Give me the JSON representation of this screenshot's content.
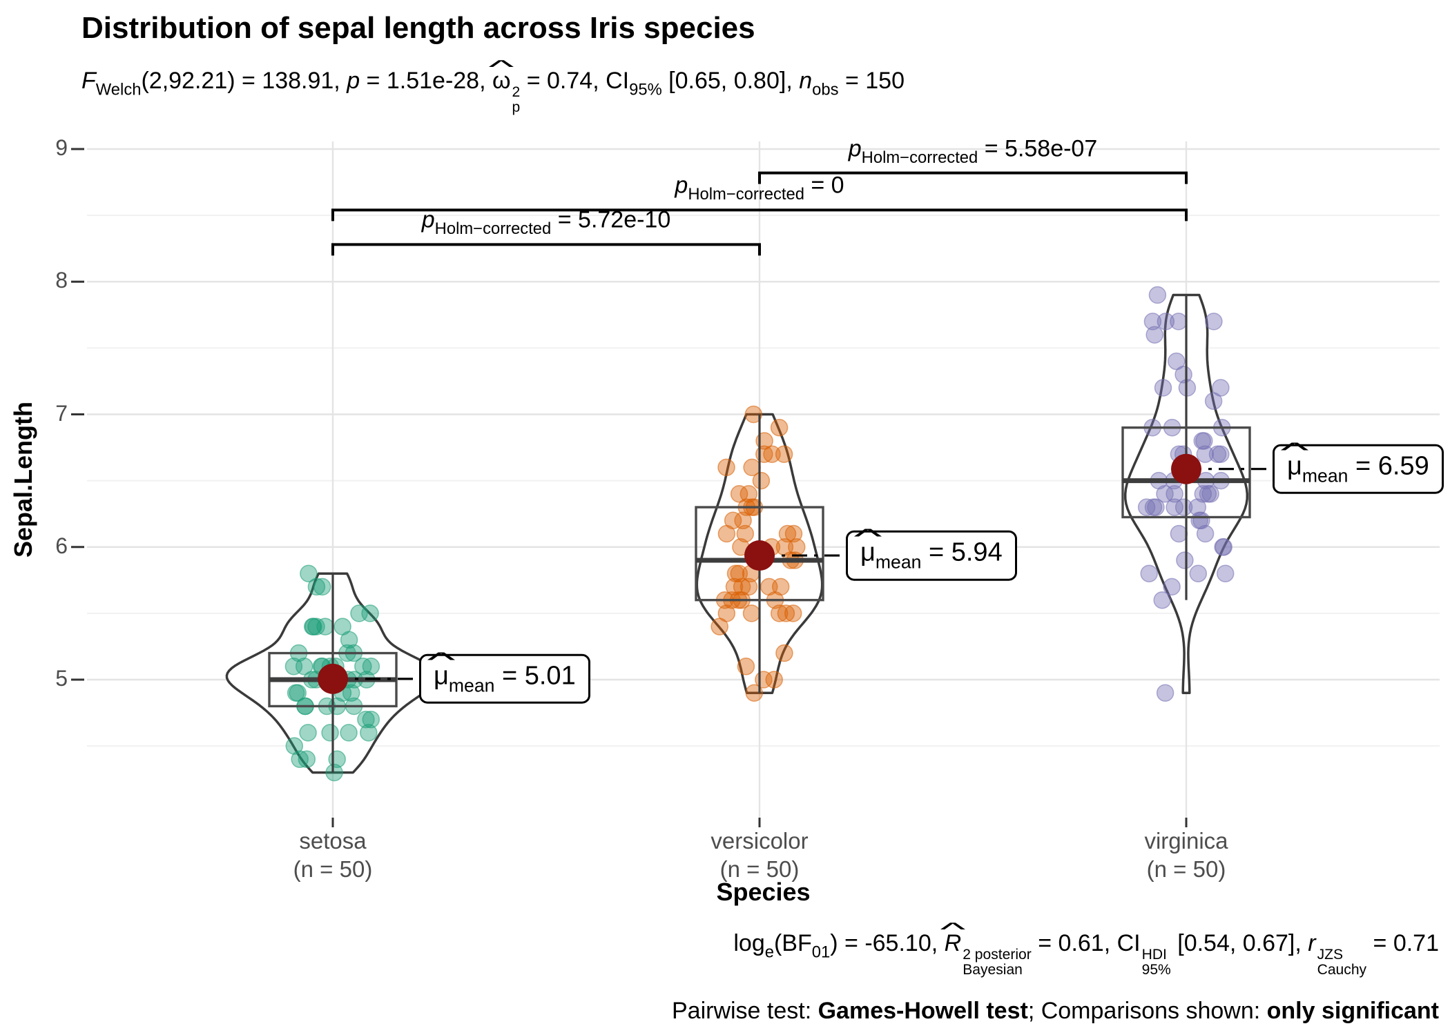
{
  "title": "Distribution of sepal length across Iris species",
  "subtitle_segments": [
    {
      "t": "F",
      "s": "i"
    },
    {
      "t": "Welch",
      "s": "sub"
    },
    {
      "t": "(2,92.21) = 138.91, "
    },
    {
      "t": "p",
      "s": "i"
    },
    {
      "t": " = 1.51e-28, "
    },
    {
      "t": "ω",
      "hat": true
    },
    {
      "stack": {
        "up": "2",
        "down": "p"
      }
    },
    {
      "t": " = 0.74, CI"
    },
    {
      "t": "95%",
      "s": "sub"
    },
    {
      "t": " [0.65, 0.80], "
    },
    {
      "t": "n",
      "s": "i"
    },
    {
      "t": "obs",
      "s": "sub"
    },
    {
      "t": " = 150"
    }
  ],
  "caption1_segments": [
    {
      "t": "log"
    },
    {
      "t": "e",
      "s": "sub"
    },
    {
      "t": "(BF"
    },
    {
      "t": "01",
      "s": "sub"
    },
    {
      "t": ") = -65.10, "
    },
    {
      "t": "R",
      "s": "i",
      "hat": true
    },
    {
      "stack": {
        "up": "2 posterior",
        "down": "Bayesian"
      }
    },
    {
      "t": " = 0.61, CI"
    },
    {
      "stack": {
        "up": "HDI",
        "down": "95%"
      }
    },
    {
      "t": " [0.54, 0.67], "
    },
    {
      "t": "r",
      "s": "i"
    },
    {
      "stack": {
        "up": "JZS",
        "down": "Cauchy"
      }
    },
    {
      "t": " = 0.71"
    }
  ],
  "caption2_segments": [
    {
      "t": "Pairwise test: "
    },
    {
      "t": "Games-Howell test",
      "s": "b"
    },
    {
      "t": "; Comparisons shown: "
    },
    {
      "t": "only significant",
      "s": "b"
    }
  ],
  "axes": {
    "y_title": "Sepal.Length",
    "x_title": "Species",
    "y_ticks": [
      {
        "v": 9,
        "label": "9"
      },
      {
        "v": 8,
        "label": "8"
      },
      {
        "v": 7,
        "label": "7"
      },
      {
        "v": 6,
        "label": "6"
      },
      {
        "v": 5,
        "label": "5"
      }
    ],
    "y_minor": [
      8.5,
      7.5,
      6.5,
      5.5,
      4.5
    ]
  },
  "chart_data": {
    "type": "violin+box+jitter",
    "x_variable": "Species",
    "y_variable": "Sepal.Length",
    "ylim_shown": [
      4.0,
      9.05
    ],
    "grid": "major+minor horizontal, major vertical at categories",
    "series": [
      {
        "name": "setosa",
        "x_label_line1": "setosa",
        "x_label_line2": "(n = 50)",
        "n": 50,
        "color": "#1B9E77",
        "mean": 5.006,
        "mean_label_segments": [
          {
            "t": "μ",
            "hat": true
          },
          {
            "t": "mean",
            "s": "sub"
          },
          {
            "t": " = 5.01"
          }
        ],
        "values": [
          5.1,
          4.9,
          4.7,
          4.6,
          5.0,
          5.4,
          4.6,
          5.0,
          4.4,
          4.9,
          5.4,
          4.8,
          4.8,
          4.3,
          5.8,
          5.7,
          5.4,
          5.1,
          5.7,
          5.1,
          5.4,
          5.1,
          4.6,
          5.1,
          4.8,
          5.0,
          5.0,
          5.2,
          5.2,
          4.7,
          4.8,
          5.4,
          5.2,
          5.5,
          4.9,
          5.0,
          5.5,
          4.9,
          4.4,
          5.1,
          5.0,
          4.5,
          4.4,
          5.0,
          5.1,
          4.8,
          5.1,
          4.6,
          5.3,
          5.0
        ]
      },
      {
        "name": "versicolor",
        "x_label_line1": "versicolor",
        "x_label_line2": "(n = 50)",
        "n": 50,
        "color": "#D95F02",
        "mean": 5.936,
        "mean_label_segments": [
          {
            "t": "μ",
            "hat": true
          },
          {
            "t": "mean",
            "s": "sub"
          },
          {
            "t": " = 5.94"
          }
        ],
        "values": [
          7.0,
          6.4,
          6.9,
          5.5,
          6.5,
          5.7,
          6.3,
          4.9,
          6.6,
          5.2,
          5.0,
          5.9,
          6.0,
          6.1,
          5.6,
          6.7,
          5.6,
          5.8,
          6.2,
          5.6,
          5.9,
          6.1,
          6.3,
          6.1,
          6.4,
          6.6,
          6.8,
          6.7,
          6.0,
          5.7,
          5.5,
          5.5,
          5.8,
          6.0,
          5.4,
          6.0,
          6.7,
          6.3,
          5.6,
          5.5,
          5.5,
          6.1,
          5.8,
          5.0,
          5.6,
          5.7,
          5.7,
          6.2,
          5.1,
          5.7
        ]
      },
      {
        "name": "virginica",
        "x_label_line1": "virginica",
        "x_label_line2": "(n = 50)",
        "n": 50,
        "color": "#7570B3",
        "mean": 6.588,
        "mean_label_segments": [
          {
            "t": "μ",
            "hat": true
          },
          {
            "t": "mean",
            "s": "sub"
          },
          {
            "t": " = 6.59"
          }
        ],
        "values": [
          6.3,
          5.8,
          7.1,
          6.3,
          6.5,
          7.6,
          4.9,
          7.3,
          6.7,
          7.2,
          6.5,
          6.4,
          6.8,
          5.7,
          5.8,
          6.4,
          6.5,
          7.7,
          7.7,
          6.0,
          6.9,
          5.6,
          7.7,
          6.3,
          6.7,
          7.2,
          6.2,
          6.1,
          6.4,
          7.2,
          7.4,
          7.9,
          6.4,
          6.3,
          6.1,
          7.7,
          6.3,
          6.4,
          6.0,
          6.9,
          6.7,
          6.9,
          5.8,
          6.8,
          6.7,
          6.7,
          6.3,
          6.5,
          6.2,
          5.9
        ]
      }
    ],
    "comparisons": [
      {
        "group1": 0,
        "group2": 1,
        "y": 8.28,
        "label_segments": [
          {
            "t": "p",
            "s": "i"
          },
          {
            "t": "Holm−corrected",
            "s": "sub"
          },
          {
            "t": " = 5.72e-10"
          }
        ]
      },
      {
        "group1": 0,
        "group2": 2,
        "y": 8.54,
        "label_segments": [
          {
            "t": "p",
            "s": "i"
          },
          {
            "t": "Holm−corrected",
            "s": "sub"
          },
          {
            "t": " = 0"
          }
        ]
      },
      {
        "group1": 1,
        "group2": 2,
        "y": 8.82,
        "label_segments": [
          {
            "t": "p",
            "s": "i"
          },
          {
            "t": "Holm−corrected",
            "s": "sub"
          },
          {
            "t": " = 5.58e-07"
          }
        ]
      }
    ]
  },
  "colors": {
    "mean_dot": "#8B1010",
    "violin_stroke": "#3A3A3A",
    "box_stroke": "#4A4A4A",
    "whisker": "#3D3D3D",
    "grid_major": "#E4E4E4",
    "grid_minor": "#F1F1F1",
    "axis_tick": "#333333",
    "tick_label": "#4D4D4D",
    "bracket": "#000000"
  }
}
